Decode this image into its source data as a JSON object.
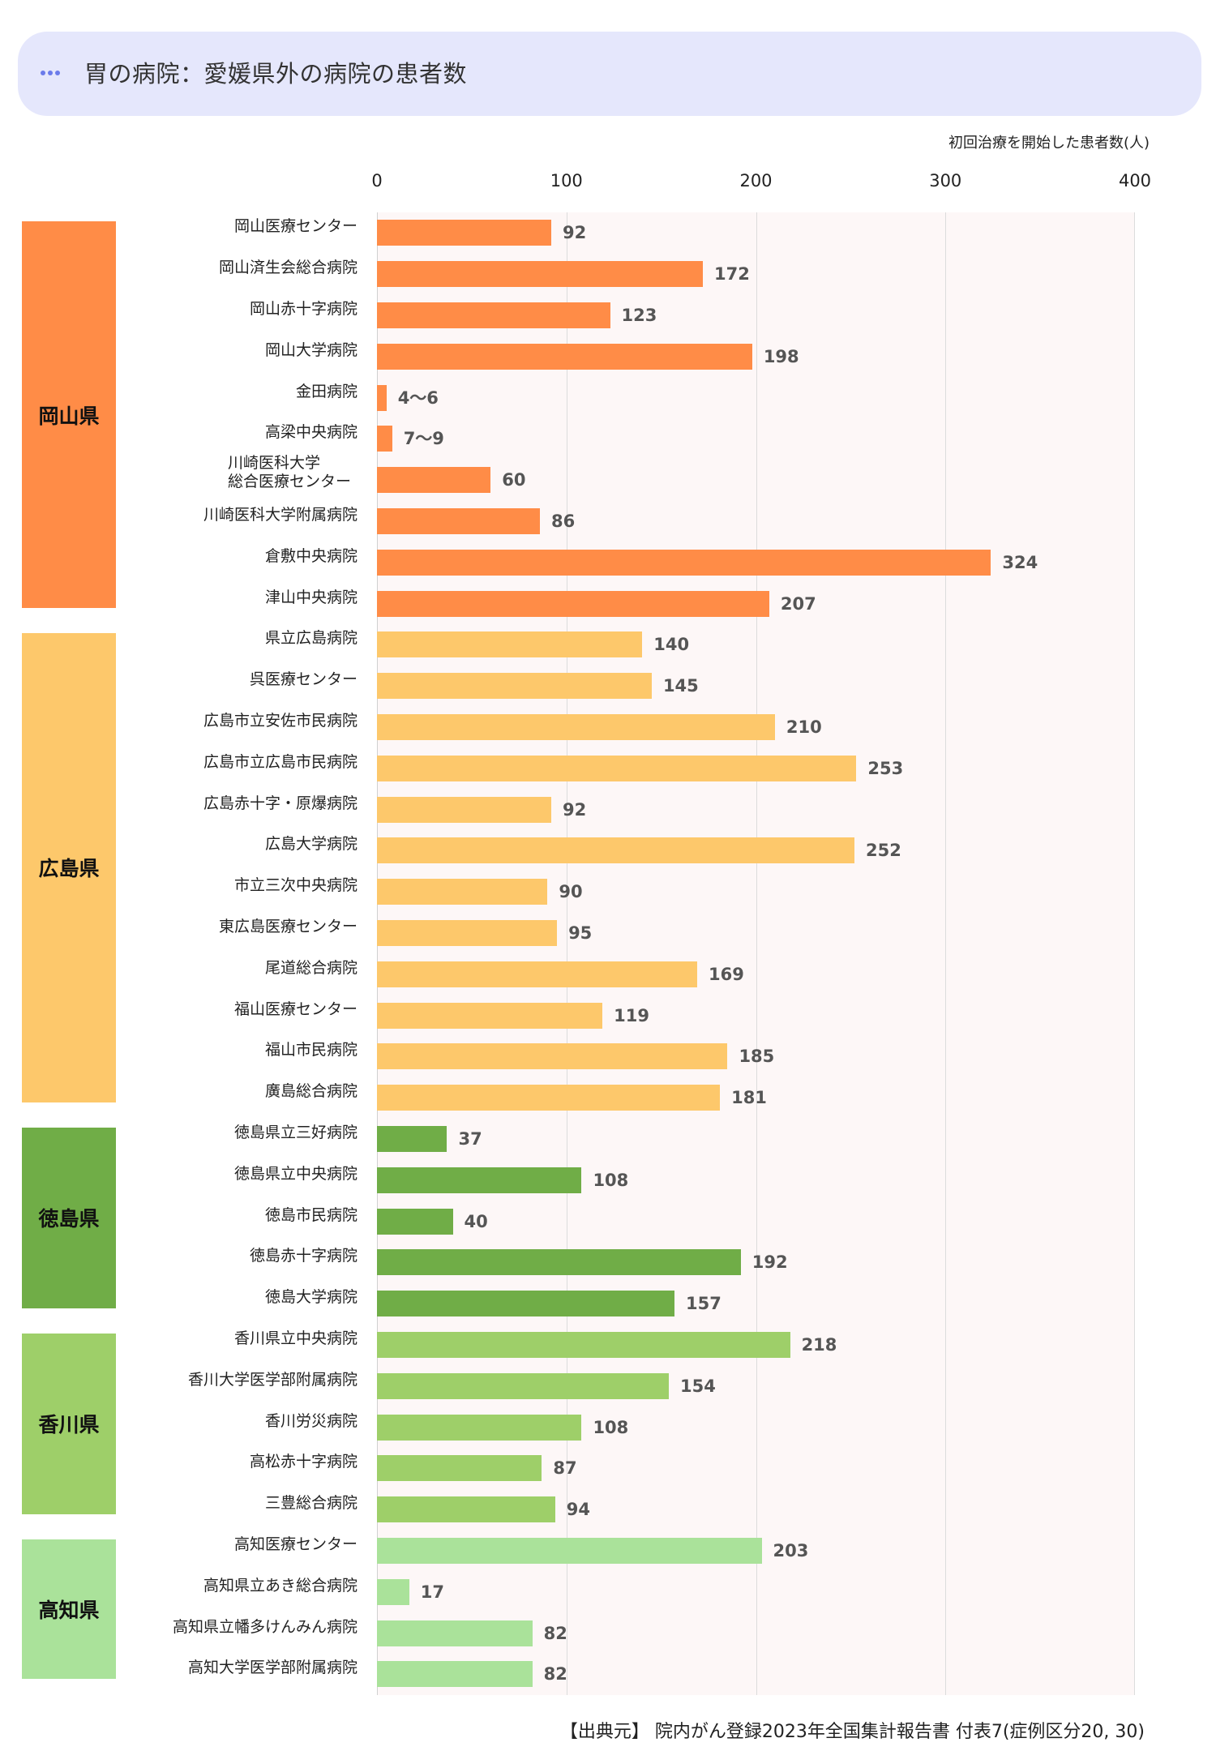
{
  "header": {
    "title": "胃の病院：愛媛県外の病院の患者数",
    "icon": "ellipsis-icon",
    "background": "#E5E7FC"
  },
  "axis": {
    "title": "初回治療を開始した患者数(人)",
    "ticks": [
      "0",
      "100",
      "200",
      "300",
      "400"
    ]
  },
  "groups": [
    {
      "name": "岡山県",
      "color": "#FF8C47"
    },
    {
      "name": "広島県",
      "color": "#FDC86B"
    },
    {
      "name": "徳島県",
      "color": "#70AD47"
    },
    {
      "name": "香川県",
      "color": "#9ECF69"
    },
    {
      "name": "高知県",
      "color": "#AAE29A"
    }
  ],
  "footer": {
    "source": "【出典元】 院内がん登録2023年全国集計報告書 付表7(症例区分20, 30)"
  },
  "chart_data": {
    "type": "bar",
    "orientation": "horizontal",
    "title": "胃の病院：愛媛県外の病院の患者数",
    "xlabel": "初回治療を開始した患者数(人)",
    "ylabel": "",
    "xlim": [
      0,
      400
    ],
    "xticks": [
      0,
      100,
      200,
      300,
      400
    ],
    "grid": true,
    "legend": "none (groups labeled by colored side blocks)",
    "categories": [
      "岡山医療センター",
      "岡山済生会総合病院",
      "岡山赤十字病院",
      "岡山大学病院",
      "金田病院",
      "高梁中央病院",
      "川崎医科大学 総合医療センター",
      "川崎医科大学附属病院",
      "倉敷中央病院",
      "津山中央病院",
      "県立広島病院",
      "呉医療センター",
      "広島市立安佐市民病院",
      "広島市立広島市民病院",
      "広島赤十字・原爆病院",
      "広島大学病院",
      "市立三次中央病院",
      "東広島医療センター",
      "尾道総合病院",
      "福山医療センター",
      "福山市民病院",
      "廣島総合病院",
      "徳島県立三好病院",
      "徳島県立中央病院",
      "徳島市民病院",
      "徳島赤十字病院",
      "徳島大学病院",
      "香川県立中央病院",
      "香川大学医学部附属病院",
      "香川労災病院",
      "高松赤十字病院",
      "三豊総合病院",
      "高知医療センター",
      "高知県立あき総合病院",
      "高知県立幡多けんみん病院",
      "高知大学医学部附属病院"
    ],
    "rows": [
      {
        "group": 0,
        "label": "岡山医療センター",
        "value": 92,
        "display": "92"
      },
      {
        "group": 0,
        "label": "岡山済生会総合病院",
        "value": 172,
        "display": "172"
      },
      {
        "group": 0,
        "label": "岡山赤十字病院",
        "value": 123,
        "display": "123"
      },
      {
        "group": 0,
        "label": "岡山大学病院",
        "value": 198,
        "display": "198"
      },
      {
        "group": 0,
        "label": "金田病院",
        "value": 5,
        "display": "4〜6"
      },
      {
        "group": 0,
        "label": "高梁中央病院",
        "value": 8,
        "display": "7〜9"
      },
      {
        "group": 0,
        "label": "川崎医科大学",
        "label2": "総合医療センター",
        "value": 60,
        "display": "60"
      },
      {
        "group": 0,
        "label": "川崎医科大学附属病院",
        "value": 86,
        "display": "86"
      },
      {
        "group": 0,
        "label": "倉敷中央病院",
        "value": 324,
        "display": "324"
      },
      {
        "group": 0,
        "label": "津山中央病院",
        "value": 207,
        "display": "207"
      },
      {
        "group": 1,
        "label": "県立広島病院",
        "value": 140,
        "display": "140"
      },
      {
        "group": 1,
        "label": "呉医療センター",
        "value": 145,
        "display": "145"
      },
      {
        "group": 1,
        "label": "広島市立安佐市民病院",
        "value": 210,
        "display": "210"
      },
      {
        "group": 1,
        "label": "広島市立広島市民病院",
        "value": 253,
        "display": "253"
      },
      {
        "group": 1,
        "label": "広島赤十字・原爆病院",
        "value": 92,
        "display": "92"
      },
      {
        "group": 1,
        "label": "広島大学病院",
        "value": 252,
        "display": "252"
      },
      {
        "group": 1,
        "label": "市立三次中央病院",
        "value": 90,
        "display": "90"
      },
      {
        "group": 1,
        "label": "東広島医療センター",
        "value": 95,
        "display": "95"
      },
      {
        "group": 1,
        "label": "尾道総合病院",
        "value": 169,
        "display": "169"
      },
      {
        "group": 1,
        "label": "福山医療センター",
        "value": 119,
        "display": "119"
      },
      {
        "group": 1,
        "label": "福山市民病院",
        "value": 185,
        "display": "185"
      },
      {
        "group": 1,
        "label": "廣島総合病院",
        "value": 181,
        "display": "181"
      },
      {
        "group": 2,
        "label": "徳島県立三好病院",
        "value": 37,
        "display": "37"
      },
      {
        "group": 2,
        "label": "徳島県立中央病院",
        "value": 108,
        "display": "108"
      },
      {
        "group": 2,
        "label": "徳島市民病院",
        "value": 40,
        "display": "40"
      },
      {
        "group": 2,
        "label": "徳島赤十字病院",
        "value": 192,
        "display": "192"
      },
      {
        "group": 2,
        "label": "徳島大学病院",
        "value": 157,
        "display": "157"
      },
      {
        "group": 3,
        "label": "香川県立中央病院",
        "value": 218,
        "display": "218"
      },
      {
        "group": 3,
        "label": "香川大学医学部附属病院",
        "value": 154,
        "display": "154"
      },
      {
        "group": 3,
        "label": "香川労災病院",
        "value": 108,
        "display": "108"
      },
      {
        "group": 3,
        "label": "高松赤十字病院",
        "value": 87,
        "display": "87"
      },
      {
        "group": 3,
        "label": "三豊総合病院",
        "value": 94,
        "display": "94"
      },
      {
        "group": 4,
        "label": "高知医療センター",
        "value": 203,
        "display": "203"
      },
      {
        "group": 4,
        "label": "高知県立あき総合病院",
        "value": 17,
        "display": "17"
      },
      {
        "group": 4,
        "label": "高知県立幡多けんみん病院",
        "value": 82,
        "display": "82"
      },
      {
        "group": 4,
        "label": "高知大学医学部附属病院",
        "value": 82,
        "display": "82"
      }
    ],
    "series": [
      {
        "name": "初回治療を開始した患者数",
        "values": [
          92,
          172,
          123,
          198,
          5,
          8,
          60,
          86,
          324,
          207,
          140,
          145,
          210,
          253,
          92,
          252,
          90,
          95,
          169,
          119,
          185,
          181,
          37,
          108,
          40,
          192,
          157,
          218,
          154,
          108,
          87,
          94,
          203,
          17,
          82,
          82
        ]
      }
    ],
    "annotations": [
      "金田病院: 4〜6",
      "高梁中央病院: 7〜9"
    ],
    "source": "【出典元】 院内がん登録2023年全国集計報告書 付表7(症例区分20, 30)"
  }
}
